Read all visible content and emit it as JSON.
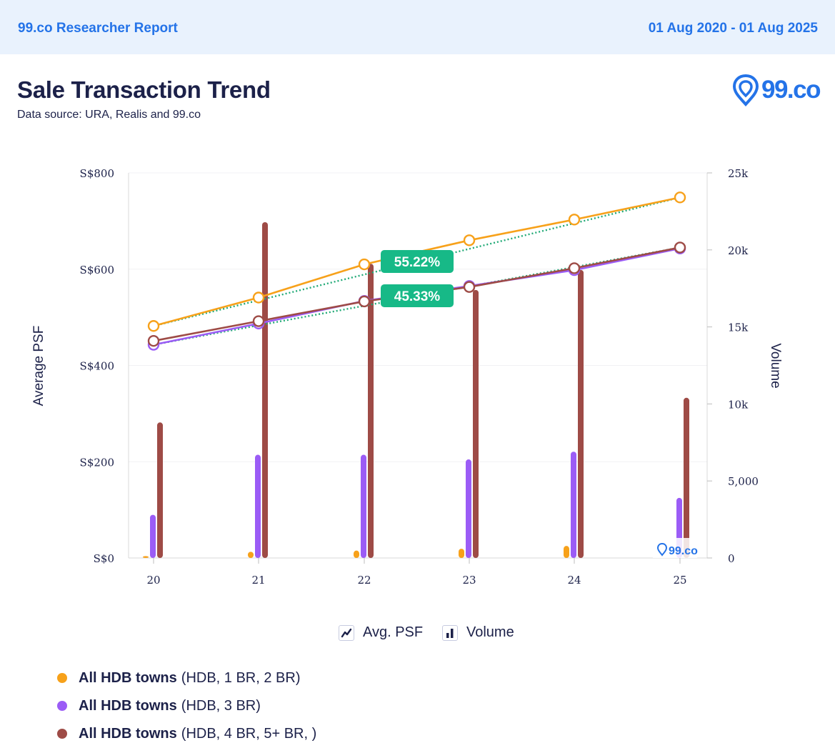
{
  "header": {
    "report_title": "99.co Researcher Report",
    "date_range": "01 Aug 2020 - 01 Aug 2025"
  },
  "page": {
    "title": "Sale Transaction Trend",
    "subtitle": "Data source: URA, Realis and 99.co"
  },
  "logo": {
    "text": "99.co",
    "watermark_text": "99.co"
  },
  "legend_types": [
    {
      "label": "Avg. PSF",
      "icon": "line-chart-icon"
    },
    {
      "label": "Volume",
      "icon": "bar-chart-icon"
    }
  ],
  "series_legend": [
    {
      "name": "All HDB towns",
      "detail": "(HDB, 1 BR, 2 BR)",
      "color": "#f7a11a"
    },
    {
      "name": "All HDB towns",
      "detail": "(HDB, 3 BR)",
      "color": "#9b5cf6"
    },
    {
      "name": "All HDB towns",
      "detail": "(HDB, 4 BR, 5+ BR, )",
      "color": "#9e4b46"
    }
  ],
  "chart_data": {
    "type": "bar",
    "categories": [
      "20",
      "21",
      "22",
      "23",
      "24",
      "25"
    ],
    "ylabel": "Average PSF",
    "y2label": "Volume",
    "ylim": [
      0,
      800
    ],
    "y2lim": [
      0,
      25000
    ],
    "y_ticks": [
      "S$0",
      "S$200",
      "S$400",
      "S$600",
      "S$800"
    ],
    "y2_ticks": [
      "0",
      "5,000",
      "10k",
      "15k",
      "20k",
      "25k"
    ],
    "grid": true,
    "avg_psf_series": [
      {
        "color": "#f7a11a",
        "values": [
          482,
          541,
          610,
          660,
          703,
          749
        ]
      },
      {
        "color": "#9b5cf6",
        "values": [
          443,
          487,
          534,
          565,
          598,
          643
        ]
      },
      {
        "color": "#9e4b46",
        "values": [
          451,
          492,
          533,
          563,
          602,
          645
        ]
      }
    ],
    "volume_series": [
      {
        "color": "#f7a11a",
        "values": [
          120,
          400,
          480,
          600,
          780,
          0
        ]
      },
      {
        "color": "#9b5cf6",
        "values": [
          2800,
          6700,
          6700,
          6400,
          6900,
          3900
        ]
      },
      {
        "color": "#9e4b46",
        "values": [
          8800,
          21800,
          19100,
          17400,
          18700,
          10400
        ]
      }
    ],
    "trend_lines": [
      {
        "color": "#22aa77",
        "from": 482,
        "to": 749
      },
      {
        "color": "#22aa77",
        "from": 443,
        "to": 645
      }
    ],
    "annotations": [
      {
        "text": "55.22%",
        "color": "#17b987"
      },
      {
        "text": "45.33%",
        "color": "#17b987"
      }
    ]
  }
}
